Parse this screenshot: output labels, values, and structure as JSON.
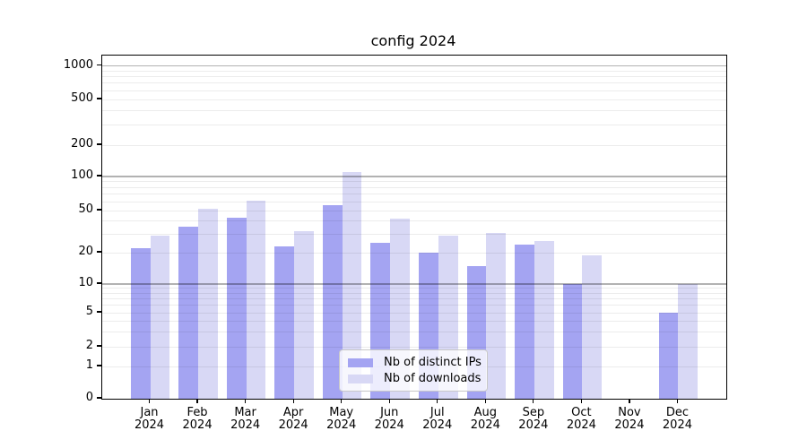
{
  "title": "config 2024",
  "legend": {
    "items": [
      {
        "label": "Nb of distinct IPs"
      },
      {
        "label": "Nb of downloads"
      }
    ]
  },
  "chart_data": {
    "type": "bar",
    "title": "config 2024",
    "categories": [
      "Jan 2024",
      "Feb 2024",
      "Mar 2024",
      "Apr 2024",
      "May 2024",
      "Jun 2024",
      "Jul 2024",
      "Aug 2024",
      "Sep 2024",
      "Oct 2024",
      "Nov 2024",
      "Dec 2024"
    ],
    "series": [
      {
        "name": "Nb of distinct IPs",
        "color": "#a4a4f2",
        "values": [
          22,
          35,
          43,
          23,
          56,
          25,
          20,
          15,
          24,
          10,
          0,
          5
        ]
      },
      {
        "name": "Nb of downloads",
        "color": "#d8d8f5",
        "values": [
          29,
          52,
          61,
          32,
          110,
          42,
          29,
          31,
          26,
          19,
          0,
          10
        ]
      }
    ],
    "yscale": "symlog",
    "yticks": [
      0,
      1,
      2,
      5,
      10,
      20,
      50,
      100,
      200,
      500,
      1000
    ],
    "ylim": [
      0,
      1250
    ],
    "grid": "both",
    "legend_position": "lower center",
    "xlabel": "",
    "ylabel": ""
  }
}
